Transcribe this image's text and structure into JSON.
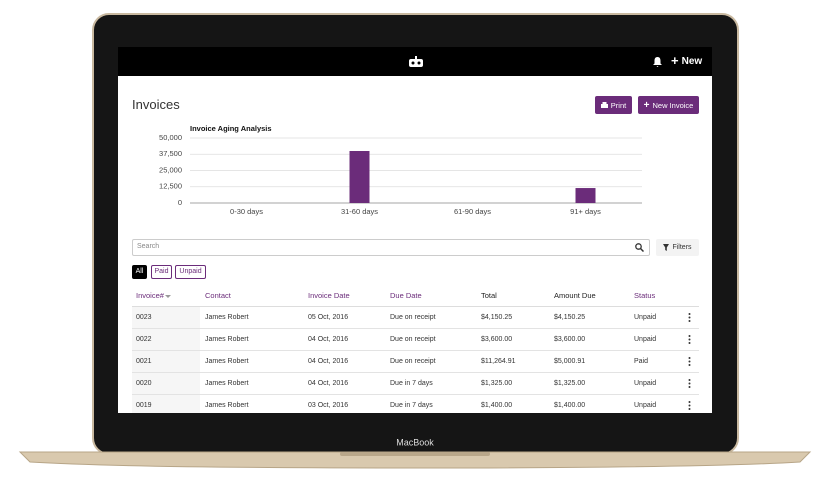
{
  "nav": {
    "new": "New"
  },
  "header": {
    "title": "Invoices",
    "print": "Print",
    "new_invoice": "New Invoice"
  },
  "chart_data": {
    "type": "bar",
    "title": "Invoice Aging Analysis",
    "categories": [
      "0-30 days",
      "31-60 days",
      "61-90 days",
      "91+ days"
    ],
    "values": [
      0,
      40000,
      0,
      11500
    ],
    "color": "#6b2c7a",
    "ylim": [
      0,
      50000
    ],
    "yticks": [
      0,
      {
        "value": 12500,
        "label": "12,500"
      },
      {
        "value": 25000,
        "label": "25,000"
      },
      {
        "value": 37500,
        "label": "37,500"
      },
      {
        "value": 50000,
        "label": "50,000"
      }
    ],
    "grid": true
  },
  "search": {
    "placeholder": "Search",
    "filters": "Filters"
  },
  "tabs": [
    "All",
    "Paid",
    "Unpaid"
  ],
  "table": {
    "columns": [
      "Invoice#",
      "Contact",
      "Invoice Date",
      "Due Date",
      "Total",
      "Amount Due",
      "Status"
    ],
    "rows": [
      [
        "0023",
        "James Robert",
        "05 Oct, 2016",
        "Due on receipt",
        "$4,150.25",
        "$4,150.25",
        "Unpaid"
      ],
      [
        "0022",
        "James Robert",
        "04 Oct, 2016",
        "Due on receipt",
        "$3,600.00",
        "$3,600.00",
        "Unpaid"
      ],
      [
        "0021",
        "James Robert",
        "04 Oct, 2016",
        "Due on receipt",
        "$11,264.91",
        "$5,000.91",
        "Paid"
      ],
      [
        "0020",
        "James Robert",
        "04 Oct, 2016",
        "Due in 7 days",
        "$1,325.00",
        "$1,325.00",
        "Unpaid"
      ],
      [
        "0019",
        "James Robert",
        "03 Oct, 2016",
        "Due in 7 days",
        "$1,400.00",
        "$1,400.00",
        "Unpaid"
      ]
    ]
  },
  "device": {
    "label": "MacBook"
  }
}
